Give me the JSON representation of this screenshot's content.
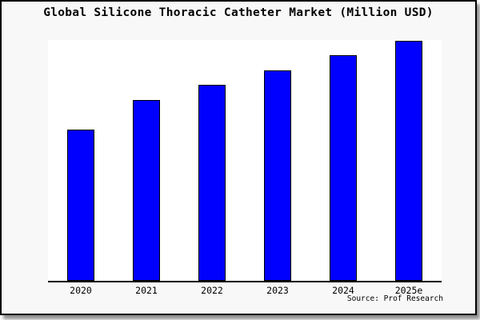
{
  "title": "Global Silicone Thoracic Catheter Market (Million USD)",
  "source": "Source: Prof Research",
  "chart_data": {
    "type": "bar",
    "title": "Global Silicone Thoracic Catheter Market (Million USD)",
    "categories": [
      "2020",
      "2021",
      "2022",
      "2023",
      "2024",
      "2025e"
    ],
    "values": [
      62.7,
      75.0,
      81.5,
      87.4,
      93.6,
      99.8
    ],
    "xlabel": "",
    "ylabel": "",
    "ylim": [
      0,
      100
    ],
    "units": "Million USD",
    "y_axis_ticks_visible": false,
    "grid": false,
    "legend": "none",
    "note": "No y-axis scale is drawn in the source image; values are estimated bar heights as percent of the tallest bar (2025e = ~100)"
  },
  "colors": {
    "page_background": "#f8f8f8",
    "plot_background": "#ffffff",
    "bar_fill": "#0000ff",
    "bar_border": "#000000",
    "axis_line": "#000000",
    "text": "#000000",
    "figure_border": "#000000",
    "shadow": "#8f8f8f"
  }
}
